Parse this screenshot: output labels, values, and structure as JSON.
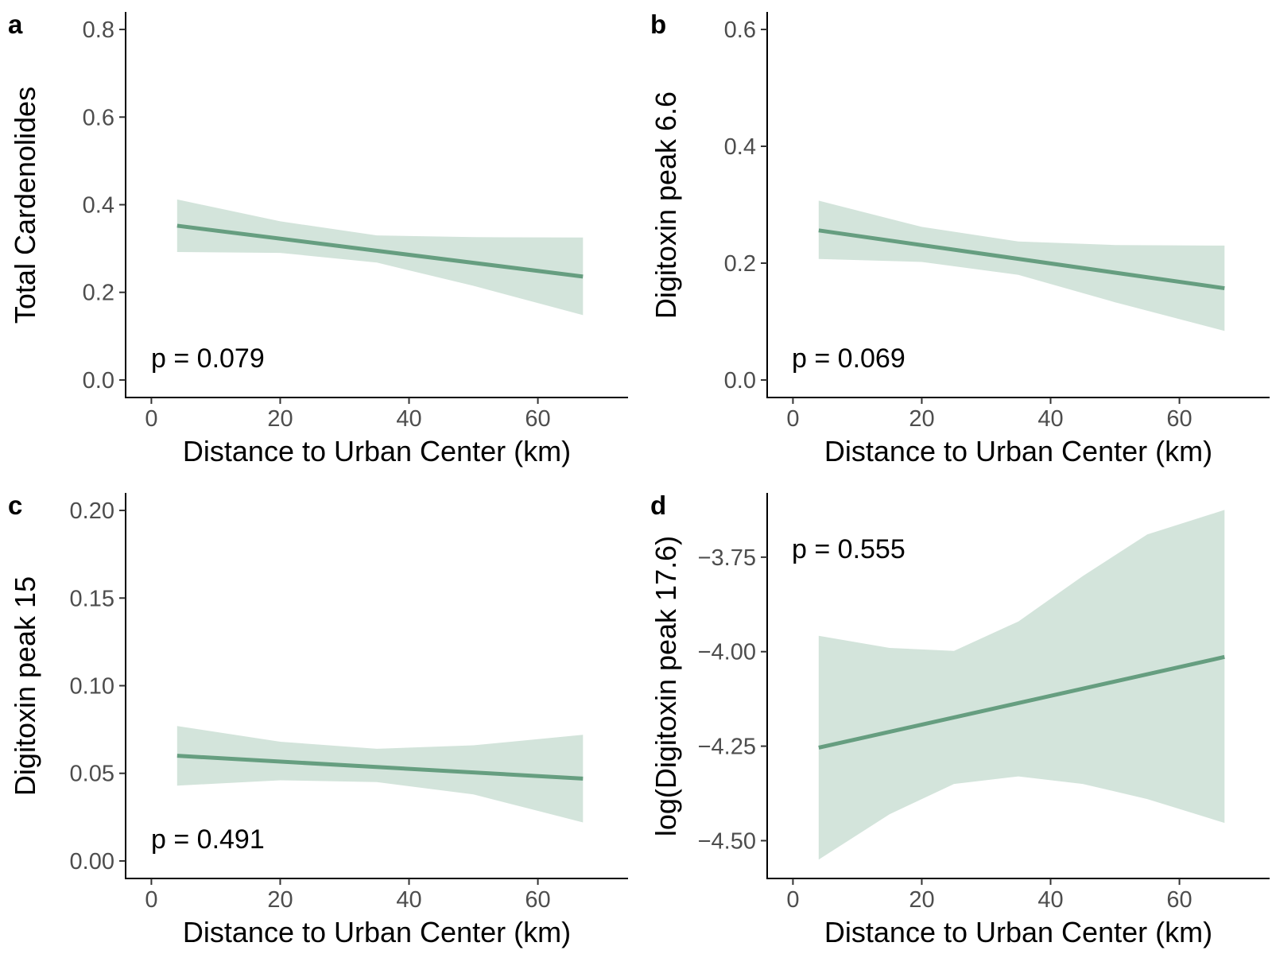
{
  "colors": {
    "line": "#669E80",
    "ribbon": "#D3E4DB",
    "axis": "#000000",
    "tick_text": "#4d4d4d"
  },
  "chart_data": [
    {
      "type": "line",
      "tag": "a",
      "xlabel": "Distance to Urban Center (km)",
      "ylabel": "Total Cardenolides",
      "annotation": "p = 0.079",
      "annotation_position": "bottom-left",
      "xlim": [
        -4,
        74
      ],
      "ylim": [
        -0.04,
        0.84
      ],
      "xticks": [
        0,
        20,
        40,
        60
      ],
      "xtick_labels": [
        "0",
        "20",
        "40",
        "60"
      ],
      "yticks": [
        0.0,
        0.2,
        0.4,
        0.6,
        0.8
      ],
      "ytick_labels": [
        "0.0",
        "0.2",
        "0.4",
        "0.6",
        "0.8"
      ],
      "grid": false,
      "fit": {
        "x": [
          4,
          67
        ],
        "y": [
          0.352,
          0.236
        ]
      },
      "ribbon": {
        "x": [
          4,
          20,
          35,
          50,
          67
        ],
        "upper": [
          0.412,
          0.362,
          0.33,
          0.326,
          0.325
        ],
        "lower": [
          0.292,
          0.29,
          0.268,
          0.215,
          0.148
        ]
      }
    },
    {
      "type": "line",
      "tag": "b",
      "xlabel": "Distance to Urban Center (km)",
      "ylabel": "Digitoxin peak 6.6",
      "annotation": "p = 0.069",
      "annotation_position": "bottom-left",
      "xlim": [
        -4,
        74
      ],
      "ylim": [
        -0.03,
        0.63
      ],
      "xticks": [
        0,
        20,
        40,
        60
      ],
      "xtick_labels": [
        "0",
        "20",
        "40",
        "60"
      ],
      "yticks": [
        0.0,
        0.2,
        0.4,
        0.6
      ],
      "ytick_labels": [
        "0.0",
        "0.2",
        "0.4",
        "0.6"
      ],
      "grid": false,
      "fit": {
        "x": [
          4,
          67
        ],
        "y": [
          0.256,
          0.157
        ]
      },
      "ribbon": {
        "x": [
          4,
          20,
          35,
          50,
          67
        ],
        "upper": [
          0.307,
          0.262,
          0.237,
          0.231,
          0.23
        ],
        "lower": [
          0.207,
          0.202,
          0.18,
          0.133,
          0.084
        ]
      }
    },
    {
      "type": "line",
      "tag": "c",
      "xlabel": "Distance to Urban Center (km)",
      "ylabel": "Digitoxin peak 15",
      "annotation": "p = 0.491",
      "annotation_position": "bottom-left",
      "xlim": [
        -4,
        74
      ],
      "ylim": [
        -0.01,
        0.21
      ],
      "xticks": [
        0,
        20,
        40,
        60
      ],
      "xtick_labels": [
        "0",
        "20",
        "40",
        "60"
      ],
      "yticks": [
        0.0,
        0.05,
        0.1,
        0.15,
        0.2
      ],
      "ytick_labels": [
        "0.00",
        "0.05",
        "0.10",
        "0.15",
        "0.20"
      ],
      "grid": false,
      "fit": {
        "x": [
          4,
          67
        ],
        "y": [
          0.06,
          0.047
        ]
      },
      "ribbon": {
        "x": [
          4,
          20,
          35,
          50,
          67
        ],
        "upper": [
          0.077,
          0.068,
          0.064,
          0.066,
          0.072
        ],
        "lower": [
          0.043,
          0.046,
          0.045,
          0.038,
          0.022
        ]
      }
    },
    {
      "type": "line",
      "tag": "d",
      "xlabel": "Distance to Urban Center (km)",
      "ylabel": "log(Digitoxin peak 17.6)",
      "annotation": "p = 0.555",
      "annotation_position": "top-left",
      "xlim": [
        -4,
        74
      ],
      "ylim": [
        -4.6,
        -3.58
      ],
      "xticks": [
        0,
        20,
        40,
        60
      ],
      "xtick_labels": [
        "0",
        "20",
        "40",
        "60"
      ],
      "yticks": [
        -4.5,
        -4.25,
        -4.0,
        -3.75
      ],
      "ytick_labels": [
        "−4.50",
        "−4.25",
        "−4.00",
        "−3.75"
      ],
      "grid": false,
      "fit": {
        "x": [
          4,
          67
        ],
        "y": [
          -4.254,
          -4.014
        ]
      },
      "ribbon": {
        "x": [
          4,
          15,
          25,
          35,
          45,
          55,
          67
        ],
        "upper": [
          -3.958,
          -3.99,
          -3.998,
          -3.92,
          -3.8,
          -3.69,
          -3.625
        ],
        "lower": [
          -4.55,
          -4.43,
          -4.35,
          -4.33,
          -4.35,
          -4.39,
          -4.453
        ]
      }
    }
  ]
}
